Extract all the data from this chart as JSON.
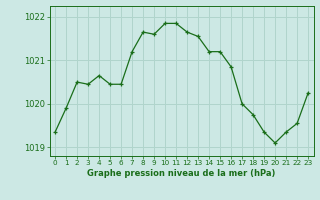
{
  "x": [
    0,
    1,
    2,
    3,
    4,
    5,
    6,
    7,
    8,
    9,
    10,
    11,
    12,
    13,
    14,
    15,
    16,
    17,
    18,
    19,
    20,
    21,
    22,
    23
  ],
  "y": [
    1019.35,
    1019.9,
    1020.5,
    1020.45,
    1020.65,
    1020.45,
    1020.45,
    1021.2,
    1021.65,
    1021.6,
    1021.85,
    1021.85,
    1021.65,
    1021.55,
    1021.2,
    1021.2,
    1020.85,
    1020.0,
    1019.75,
    1019.35,
    1019.1,
    1019.35,
    1019.55,
    1020.25
  ],
  "line_color": "#1a6e1a",
  "marker": "+",
  "bg_color": "#cce8e4",
  "grid_color": "#b0d4cc",
  "xlabel": "Graphe pression niveau de la mer (hPa)",
  "xlabel_color": "#1a6e1a",
  "tick_color": "#1a6e1a",
  "ylim": [
    1018.8,
    1022.25
  ],
  "yticks": [
    1019,
    1020,
    1021,
    1022
  ],
  "xlim": [
    -0.5,
    23.5
  ],
  "xticks": [
    0,
    1,
    2,
    3,
    4,
    5,
    6,
    7,
    8,
    9,
    10,
    11,
    12,
    13,
    14,
    15,
    16,
    17,
    18,
    19,
    20,
    21,
    22,
    23
  ]
}
